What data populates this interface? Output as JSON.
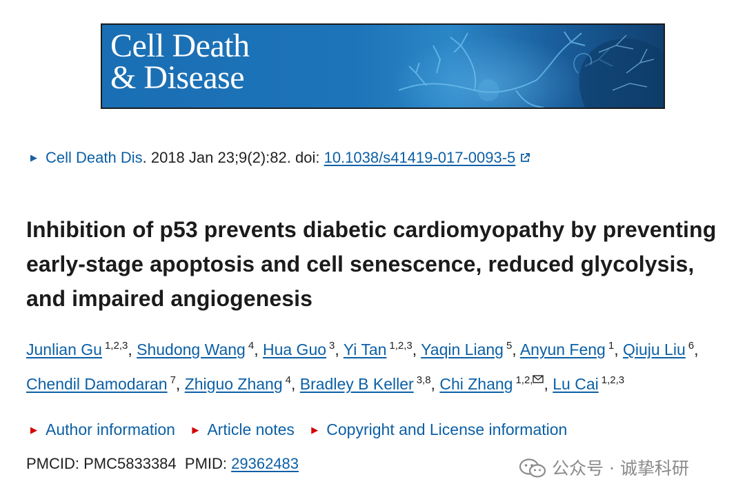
{
  "banner": {
    "journal_line1": "Cell Death",
    "journal_line2": "& Disease"
  },
  "citation": {
    "journal_link": "Cell Death Dis",
    "details": ". 2018 Jan 23;9(2):82. doi: ",
    "doi": "10.1038/s41419-017-0093-5"
  },
  "title": "Inhibition of p53 prevents diabetic cardiomyopathy by preventing early-stage apoptosis and cell senescence, reduced glycolysis, and impaired angiogenesis",
  "authors": [
    {
      "name": "Junlian Gu",
      "aff": "1,2,3"
    },
    {
      "name": "Shudong Wang",
      "aff": "4"
    },
    {
      "name": "Hua Guo",
      "aff": "3"
    },
    {
      "name": "Yi Tan",
      "aff": "1,2,3"
    },
    {
      "name": "Yaqin Liang",
      "aff": "5"
    },
    {
      "name": "Anyun Feng",
      "aff": "1"
    },
    {
      "name": "Qiuju Liu",
      "aff": "6"
    },
    {
      "name": "Chendil Damodaran",
      "aff": "7"
    },
    {
      "name": "Zhiguo Zhang",
      "aff": "4"
    },
    {
      "name": "Bradley B Keller",
      "aff": "3,8"
    },
    {
      "name": "Chi Zhang",
      "aff": "1,2,"
    },
    {
      "name": "Lu Cai",
      "aff": "1,2,3"
    }
  ],
  "notes": {
    "author_information": "Author information",
    "article_notes": "Article notes",
    "copyright": "Copyright and License information"
  },
  "ids": {
    "pmcid": "PMCID: PMC5833384",
    "pmid_label": "PMID: ",
    "pmid": "29362483"
  },
  "watermark": {
    "text": "公众号 · 诚挚科研"
  },
  "colors": {
    "link": "#0b5fa5",
    "expander_triangle": "#d40000",
    "banner_blue": "#1e74b8"
  }
}
